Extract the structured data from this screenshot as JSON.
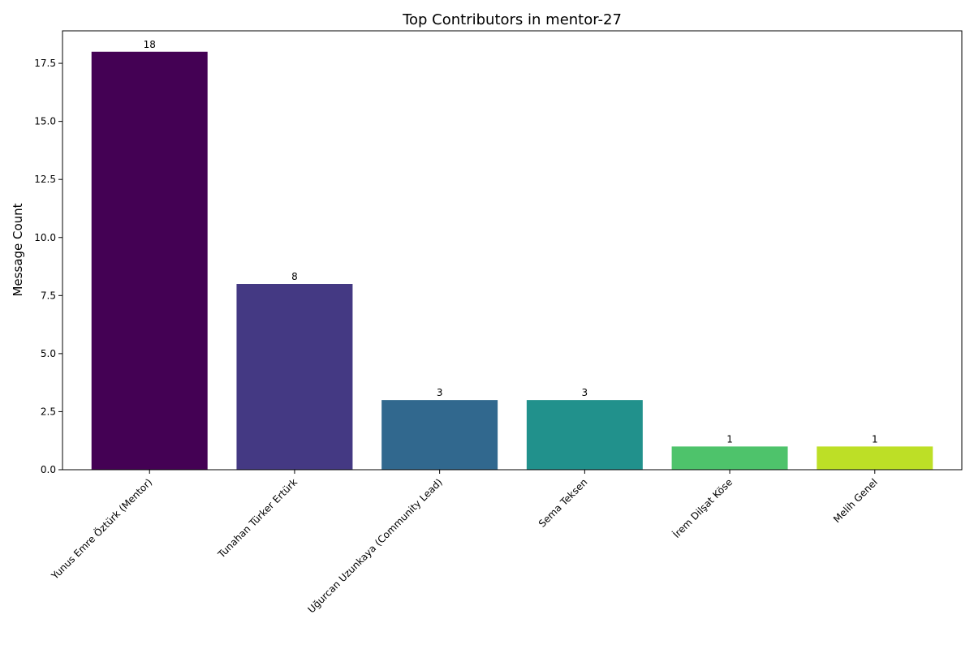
{
  "chart_data": {
    "type": "bar",
    "title": "Top Contributors in mentor-27",
    "xlabel": "",
    "ylabel": "Message Count",
    "categories": [
      "Yunus Emre Öztürk (Mentor)",
      "Tunahan Türker Ertürk",
      "Uğurcan Uzunkaya (Community Lead)",
      "Sema Teksen",
      "İrem Dilşat Köse",
      "Melih Genel"
    ],
    "values": [
      18,
      8,
      3,
      3,
      1,
      1
    ],
    "data_labels": [
      "18",
      "8",
      "3",
      "3",
      "1",
      "1"
    ],
    "colors": [
      "#440154",
      "#443983",
      "#31688e",
      "#21918c",
      "#4ec36b",
      "#bddf26"
    ],
    "ylim": [
      0,
      18.9
    ],
    "yticks": [
      0,
      2.5,
      5,
      7.5,
      10,
      12.5,
      15,
      17.5
    ],
    "ytick_labels": [
      "0.0",
      "2.5",
      "5.0",
      "7.5",
      "10.0",
      "12.5",
      "15.0",
      "17.5"
    ],
    "grid": false,
    "legend": "none"
  }
}
